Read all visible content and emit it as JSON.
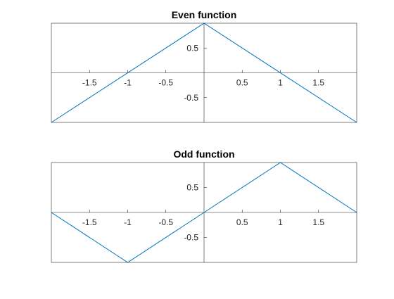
{
  "chart_data": [
    {
      "type": "line",
      "title": "Even function",
      "xlabel": "",
      "ylabel": "",
      "xlim": [
        -2,
        2
      ],
      "ylim": [
        -1,
        1
      ],
      "axis_location": "origin",
      "box": true,
      "grid": false,
      "xticks": [
        -1.5,
        -1,
        -0.5,
        0.5,
        1,
        1.5
      ],
      "xtick_labels": [
        "-1.5",
        "-1",
        "-0.5",
        "0.5",
        "1",
        "1.5"
      ],
      "yticks": [
        0.5,
        -0.5
      ],
      "ytick_labels": [
        "0.5",
        "-0.5"
      ],
      "line_color": "#0072BD",
      "series": [
        {
          "x": [
            -2,
            0,
            2
          ],
          "y": [
            -1,
            1,
            -1
          ]
        }
      ]
    },
    {
      "type": "line",
      "title": "Odd function",
      "xlabel": "",
      "ylabel": "",
      "xlim": [
        -2,
        2
      ],
      "ylim": [
        -1,
        1
      ],
      "axis_location": "origin",
      "box": true,
      "grid": false,
      "xticks": [
        -1.5,
        -1,
        -0.5,
        0.5,
        1,
        1.5
      ],
      "xtick_labels": [
        "-1.5",
        "-1",
        "-0.5",
        "0.5",
        "1",
        "1.5"
      ],
      "yticks": [
        0.5,
        -0.5
      ],
      "ytick_labels": [
        "0.5",
        "-0.5"
      ],
      "line_color": "#0072BD",
      "series": [
        {
          "x": [
            -2,
            -1,
            0,
            1,
            2
          ],
          "y": [
            0,
            -1,
            0,
            1,
            0
          ]
        }
      ]
    }
  ]
}
